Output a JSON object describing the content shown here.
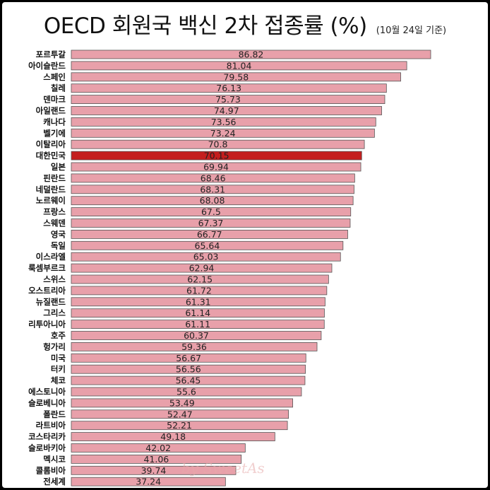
{
  "title": "OECD 회원국 백신 2차 접종률 (%)",
  "subtitle": "(10월 24일 기준)",
  "watermark": "by SweetAs",
  "colors": {
    "bar": "#e8a0aa",
    "bar_border": "#555555",
    "highlight": "#c41e1e",
    "highlight_text": "#ffffff"
  },
  "chart_data": {
    "type": "bar",
    "orientation": "horizontal",
    "title": "OECD 회원국 백신 2차 접종률 (%)",
    "subtitle": "(10월 24일 기준)",
    "highlight": "대한민국",
    "xlim": [
      0,
      86.82
    ],
    "grid": false,
    "categories": [
      "포르투갈",
      "아이슬란드",
      "스페인",
      "칠레",
      "덴마크",
      "아일랜드",
      "캐나다",
      "벨기에",
      "이탈리아",
      "대한민국",
      "일본",
      "핀란드",
      "네덜란드",
      "노르웨이",
      "프랑스",
      "스웨덴",
      "영국",
      "독일",
      "이스라엘",
      "룩셈부르크",
      "스위스",
      "오스트리아",
      "뉴질랜드",
      "그리스",
      "리투아니아",
      "호주",
      "헝가리",
      "미국",
      "터키",
      "체코",
      "에스토니아",
      "슬로베니아",
      "폴란드",
      "라트비아",
      "코스타리카",
      "슬로바키아",
      "멕시코",
      "콜롬비아",
      "전세계"
    ],
    "values": [
      86.82,
      81.04,
      79.58,
      76.13,
      75.73,
      74.97,
      73.56,
      73.24,
      70.8,
      70.15,
      69.94,
      68.46,
      68.31,
      68.08,
      67.5,
      67.37,
      66.77,
      65.64,
      65.03,
      62.94,
      62.15,
      61.72,
      61.31,
      61.14,
      61.11,
      60.37,
      59.36,
      56.67,
      56.56,
      56.45,
      55.6,
      53.49,
      52.47,
      52.21,
      49.18,
      42.02,
      41.06,
      39.74,
      37.24
    ],
    "value_labels": [
      "86.82",
      "81.04",
      "79.58",
      "76.13",
      "75.73",
      "74.97",
      "73.56",
      "73.24",
      "70.8",
      "70.15",
      "69.94",
      "68.46",
      "68.31",
      "68.08",
      "67.5",
      "67.37",
      "66.77",
      "65.64",
      "65.03",
      "62.94",
      "62.15",
      "61.72",
      "61.31",
      "61.14",
      "61.11",
      "60.37",
      "59.36",
      "56.67",
      "56.56",
      "56.45",
      "55.6",
      "53.49",
      "52.47",
      "52.21",
      "49.18",
      "42.02",
      "41.06",
      "39.74",
      "37.24"
    ]
  }
}
